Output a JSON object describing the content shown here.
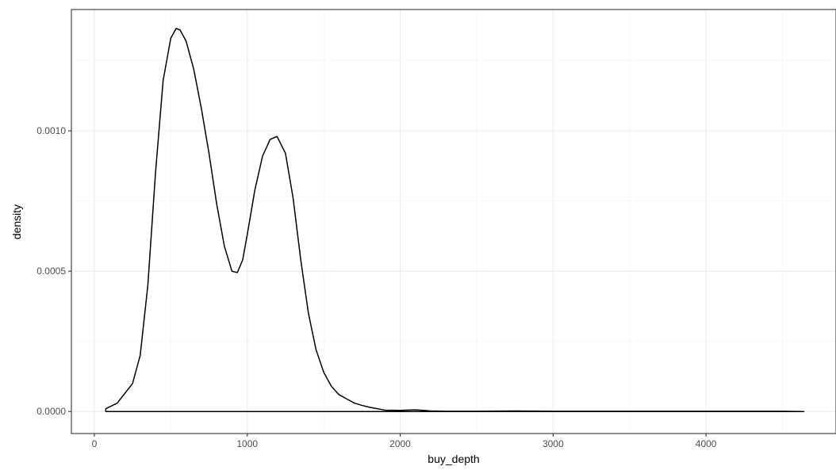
{
  "chart_data": {
    "type": "area",
    "title": "",
    "xlabel": "buy_depth",
    "ylabel": "density",
    "xlim": [
      -150,
      4850
    ],
    "ylim": [
      -7.85e-05,
      0.0014325
    ],
    "x_ticks": [
      0,
      1000,
      2000,
      3000,
      4000
    ],
    "x_tick_labels": [
      "0",
      "1000",
      "2000",
      "3000",
      "4000"
    ],
    "y_ticks": [
      0.0,
      0.0005,
      0.001
    ],
    "y_tick_labels": [
      "0.0000",
      "0.0005",
      "0.0010"
    ],
    "grid": true,
    "legend": "none",
    "series": [
      {
        "x": [
          75,
          150,
          250,
          300,
          350,
          400,
          450,
          500,
          535,
          560,
          600,
          650,
          700,
          750,
          800,
          850,
          900,
          935,
          970,
          1000,
          1050,
          1100,
          1150,
          1195,
          1250,
          1300,
          1350,
          1400,
          1450,
          1500,
          1550,
          1600,
          1650,
          1700,
          1750,
          1800,
          1850,
          1900,
          2000,
          2100,
          2150,
          2200,
          2300,
          2500,
          2750,
          3000,
          3500,
          4000,
          4500,
          4640
        ],
        "y": [
          1e-05,
          3e-05,
          0.0001,
          0.0002,
          0.00045,
          0.00085,
          0.00118,
          0.00133,
          0.001365,
          0.00136,
          0.00132,
          0.00122,
          0.00108,
          0.00092,
          0.00074,
          0.00059,
          0.0005,
          0.000495,
          0.00054,
          0.00063,
          0.00079,
          0.00091,
          0.00097,
          0.00098,
          0.00092,
          0.00076,
          0.00054,
          0.00035,
          0.00022,
          0.00014,
          9e-05,
          6e-05,
          4.5e-05,
          3e-05,
          2.2e-05,
          1.5e-05,
          1e-05,
          5e-06,
          4e-06,
          6e-06,
          4e-06,
          2e-06,
          1e-06,
          1e-06,
          2e-06,
          1e-06,
          1e-06,
          1e-06,
          1e-06,
          0.0
        ]
      }
    ]
  }
}
